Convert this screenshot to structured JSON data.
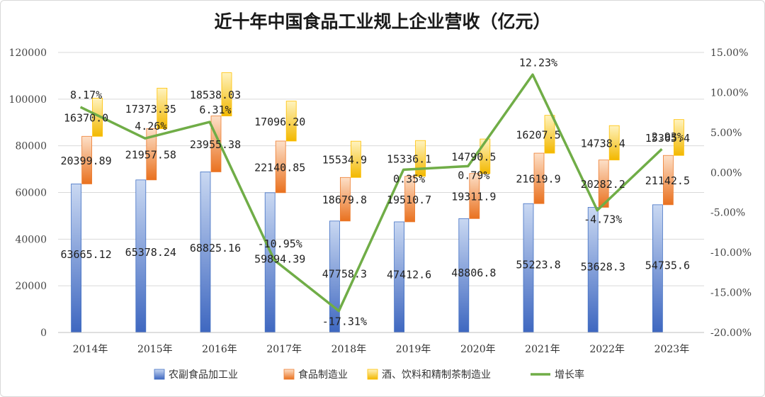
{
  "chart_data": {
    "type": "bar",
    "title": "近十年中国食品工业规上企业营收（亿元）",
    "categories": [
      "2014年",
      "2015年",
      "2016年",
      "2017年",
      "2018年",
      "2019年",
      "2020年",
      "2021年",
      "2022年",
      "2023年"
    ],
    "y_ticks": [
      "0",
      "20000",
      "40000",
      "60000",
      "80000",
      "100000",
      "120000"
    ],
    "y2_ticks": [
      "-20.00%",
      "-15.00%",
      "-10.00%",
      "-5.00%",
      "0.00%",
      "5.00%",
      "10.00%",
      "15.00%"
    ],
    "ylim": [
      0,
      120000
    ],
    "y2lim": [
      -0.2,
      0.15
    ],
    "stacked": true,
    "series": [
      {
        "name": "农副食品加工业",
        "type": "bar",
        "color": "#4472c4",
        "values": [
          63665.12,
          65378.24,
          68825.16,
          59894.39,
          47758.3,
          47412.6,
          48806.8,
          55223.8,
          53628.3,
          54735.6
        ],
        "labels": [
          "63665.12",
          "65378.24",
          "68825.16",
          "59894.39",
          "47758.3",
          "47412.6",
          "48806.8",
          "55223.8",
          "53628.3",
          "54735.6"
        ]
      },
      {
        "name": "食品制造业",
        "type": "bar",
        "color": "#ed7d31",
        "values": [
          20399.89,
          21957.58,
          23955.38,
          22140.85,
          18679.8,
          19510.7,
          19311.9,
          21619.9,
          20282.2,
          21142.5
        ],
        "labels": [
          "20399.89",
          "21957.58",
          "23955.38",
          "22140.85",
          "18679.8",
          "19510.7",
          "19311.9",
          "21619.9",
          "20282.2",
          "21142.5"
        ]
      },
      {
        "name": "酒、饮料和精制茶制造业",
        "type": "bar",
        "color": "#ffc000",
        "values": [
          16370.0,
          17373.35,
          18538.03,
          17096.2,
          15534.9,
          15336.1,
          14790.5,
          16207.5,
          14738.4,
          15365.4
        ],
        "labels": [
          "16370.0",
          "17373.35",
          "18538.03",
          "17096.20",
          "15534.9",
          "15336.1",
          "14790.5",
          "16207.5",
          "14738.4",
          "15365.4"
        ]
      },
      {
        "name": "增长率",
        "type": "line",
        "axis": "right",
        "color": "#70ad47",
        "values": [
          0.0817,
          0.0426,
          0.0631,
          -0.1095,
          -0.1731,
          0.0035,
          0.0079,
          0.1223,
          -0.0473,
          0.0293
        ],
        "labels": [
          "8.17%",
          "4.26%",
          "6.31%",
          "-10.95%",
          "-17.31%",
          "0.35%",
          "0.79%",
          "12.23%",
          "-4.73%",
          "2.93%"
        ]
      }
    ],
    "legend": "bottom",
    "grid": true
  }
}
